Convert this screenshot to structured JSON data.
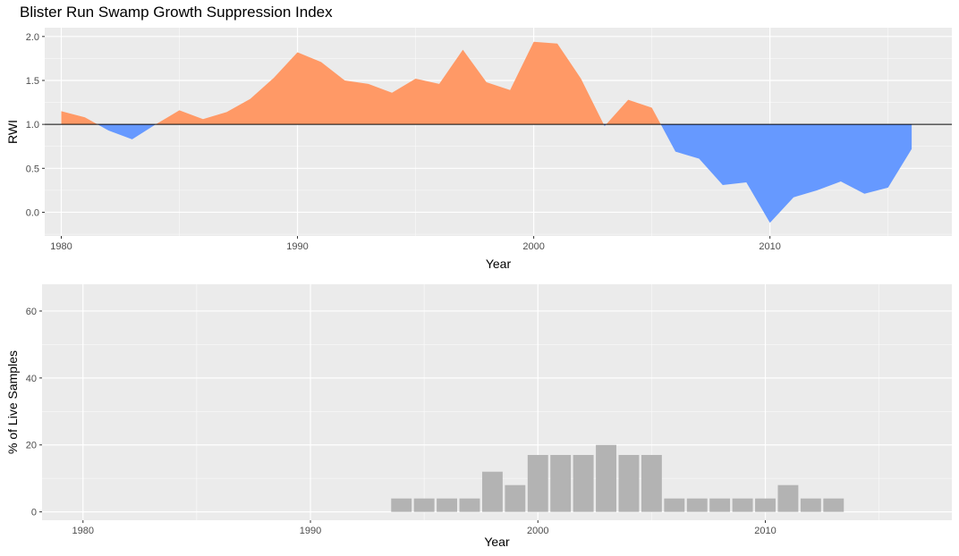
{
  "title": "Blister Run Swamp Growth Suppression Index",
  "colors": {
    "above": "#ff9966",
    "below": "#6699ff",
    "bar": "#b3b3b3",
    "panel": "#ebebeb",
    "reference_line": "#000000"
  },
  "chart_data": [
    {
      "type": "area",
      "title": "Blister Run Swamp Growth Suppression Index",
      "xlabel": "Year",
      "ylabel": "RWI",
      "xlim": [
        1979.3,
        2017.7
      ],
      "ylim": [
        -0.27,
        2.1
      ],
      "x_ticks": [
        1980,
        1990,
        2000,
        2010
      ],
      "y_ticks": [
        "0.0",
        "0.5",
        "1.0",
        "1.5",
        "2.0"
      ],
      "reference_value": 1.0,
      "x": [
        1980,
        1981,
        1982,
        1983,
        1984,
        1985,
        1986,
        1987,
        1988,
        1989,
        1990,
        1991,
        1992,
        1993,
        1994,
        1995,
        1996,
        1997,
        1998,
        1999,
        2000,
        2001,
        2002,
        2003,
        2004,
        2005,
        2006,
        2007,
        2008,
        2009,
        2010,
        2011,
        2012,
        2013,
        2014,
        2015,
        2016
      ],
      "values": [
        1.15,
        1.08,
        0.93,
        0.83,
        1.0,
        1.16,
        1.06,
        1.14,
        1.29,
        1.53,
        1.82,
        1.71,
        1.5,
        1.46,
        1.36,
        1.52,
        1.46,
        1.85,
        1.48,
        1.39,
        1.94,
        1.92,
        1.52,
        0.98,
        1.28,
        1.19,
        0.69,
        0.61,
        0.31,
        0.34,
        -0.12,
        0.17,
        0.25,
        0.35,
        0.21,
        0.28,
        0.72
      ],
      "grid": true
    },
    {
      "type": "bar",
      "xlabel": "Year",
      "ylabel": "% of Live Samples",
      "xlim": [
        1978.2,
        2018.2
      ],
      "ylim": [
        -2.5,
        68
      ],
      "x_ticks": [
        1980,
        1990,
        2000,
        2010
      ],
      "y_ticks": [
        "0",
        "20",
        "40",
        "60"
      ],
      "categories": [
        1994,
        1995,
        1996,
        1997,
        1998,
        1999,
        2000,
        2001,
        2002,
        2003,
        2004,
        2005,
        2006,
        2007,
        2008,
        2009,
        2010,
        2011,
        2012,
        2013
      ],
      "values": [
        4,
        4,
        4,
        4,
        12,
        8,
        17,
        17,
        17,
        20,
        17,
        17,
        4,
        4,
        4,
        4,
        4,
        8,
        4,
        4
      ],
      "grid": true
    }
  ]
}
